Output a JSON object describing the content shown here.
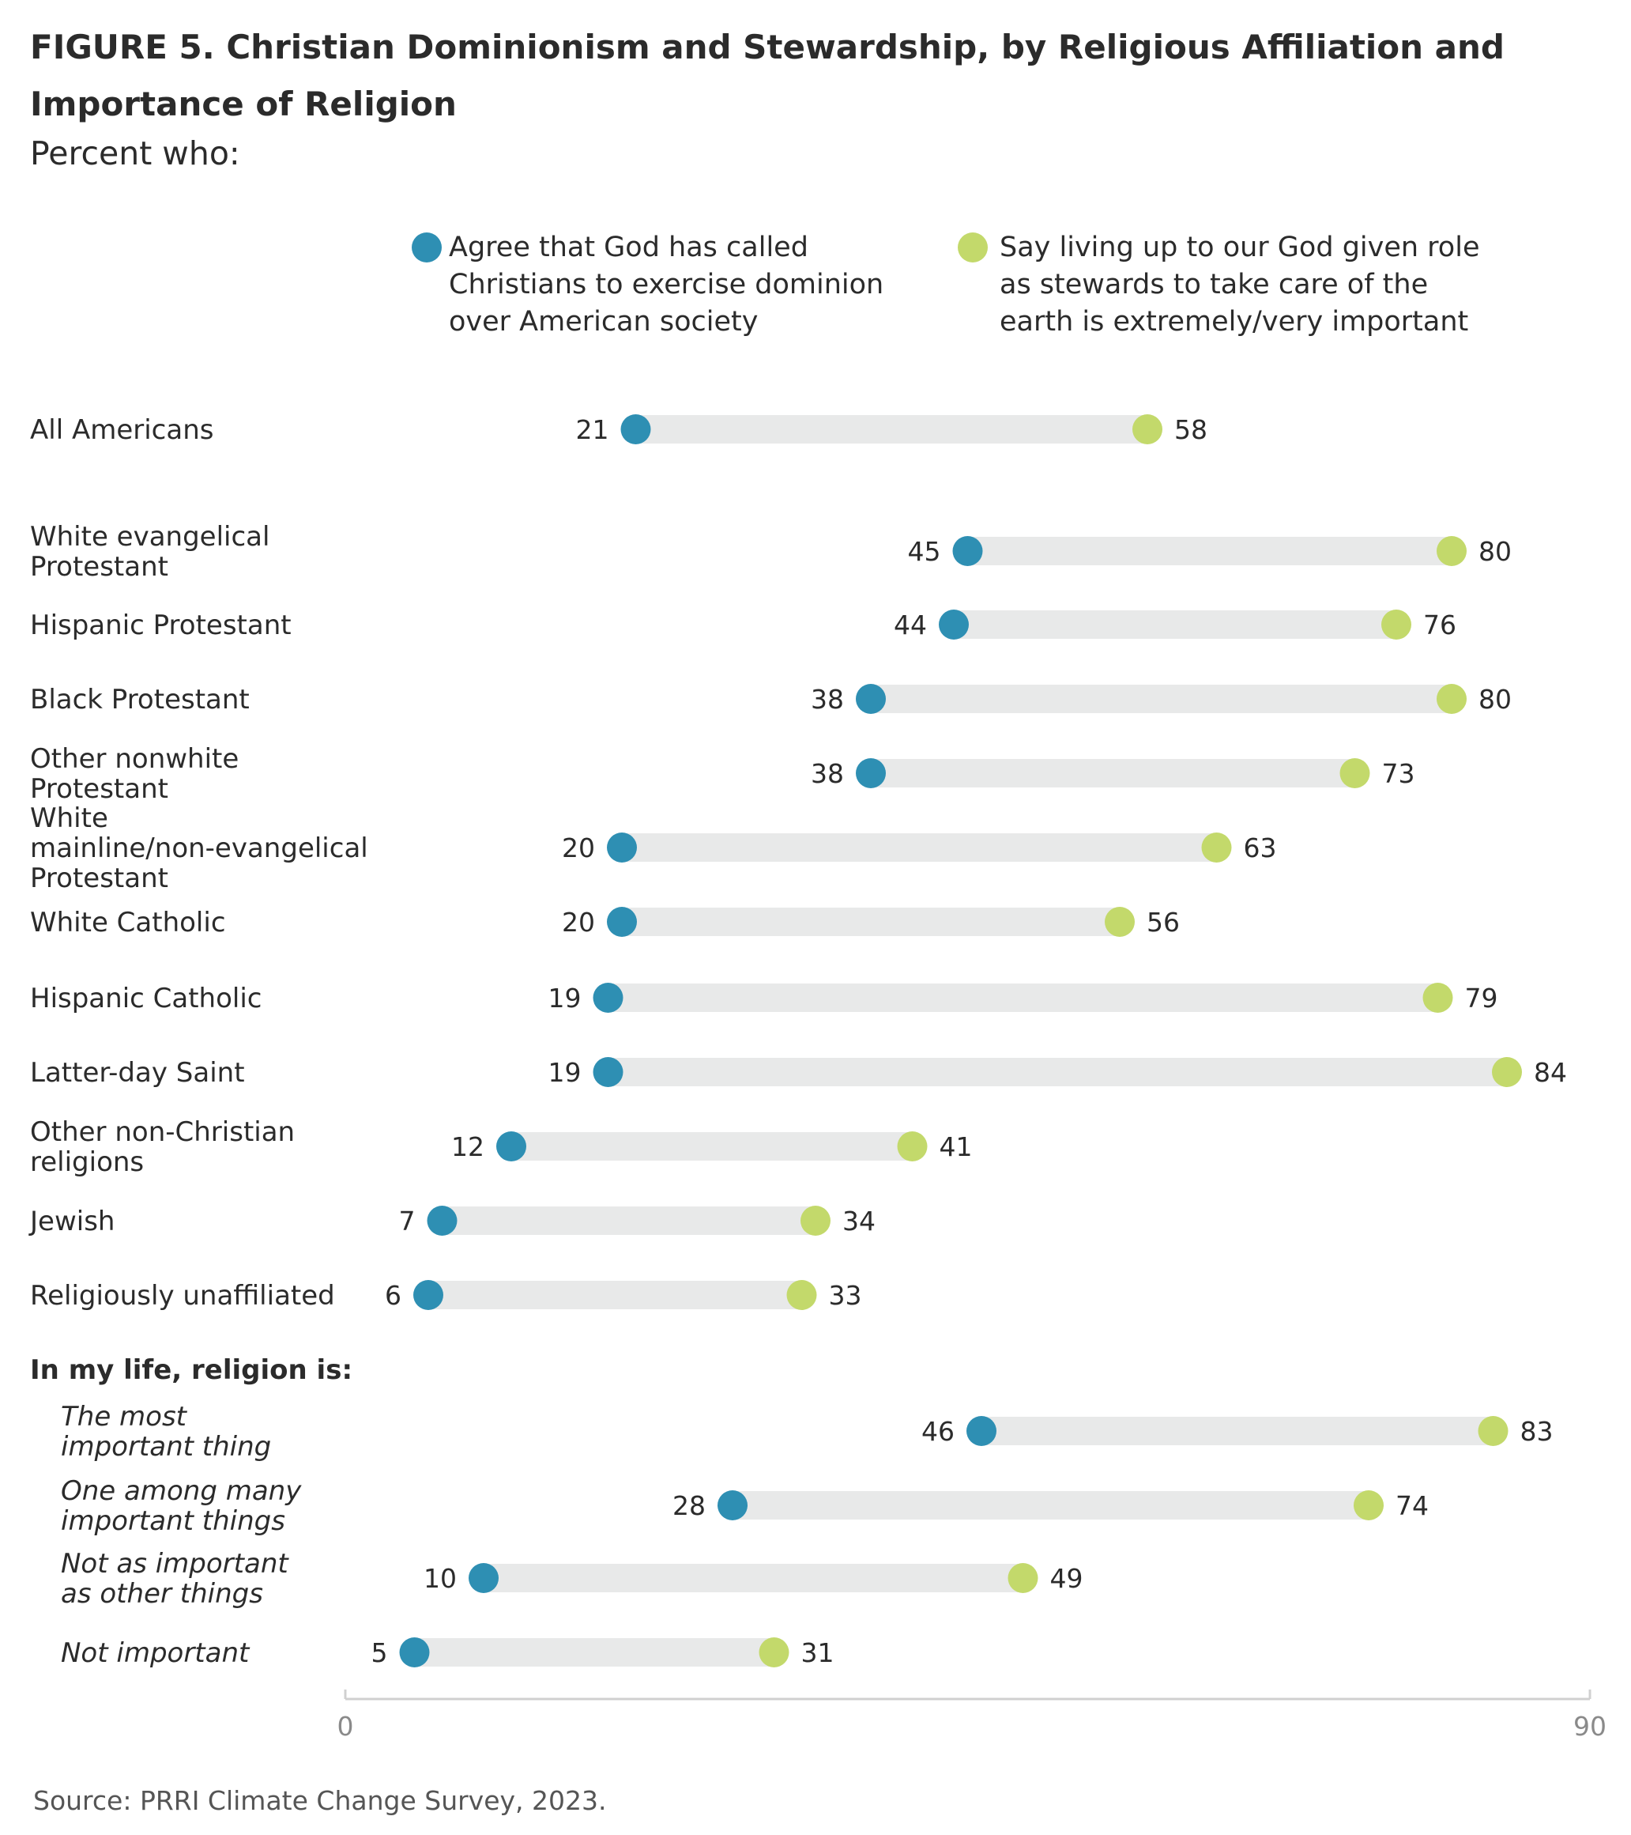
{
  "title": "FIGURE 5. Christian Dominionism and Stewardship, by Religious Affiliation and Importance of Religion",
  "subtitle": "Percent who:",
  "source": "Source: PRRI Climate Change Survey, 2023.",
  "colors": {
    "dominion": "#2e8fb3",
    "stewardship": "#c3d96b",
    "track": "#e8e9e9",
    "axis": "#d0d0d0"
  },
  "chart_data": {
    "type": "dumbbell",
    "xlim": [
      0,
      90
    ],
    "x_ticks": [
      "0",
      "90"
    ],
    "series": [
      {
        "name": "Agree that God has called Christians to exercise dominion over American society",
        "color": "#2e8fb3"
      },
      {
        "name": "Say living up to our God given role as stewards to take care of the earth is extremely/very important",
        "color": "#c3d96b"
      }
    ],
    "section_header": "In my life, religion is:",
    "rows": [
      {
        "label": "All Americans",
        "dominion": 21,
        "stewardship": 58,
        "style": "normal"
      },
      {
        "label": "White evangelical Protestant",
        "dominion": 45,
        "stewardship": 80,
        "style": "normal"
      },
      {
        "label": "Hispanic Protestant",
        "dominion": 44,
        "stewardship": 76,
        "style": "normal"
      },
      {
        "label": "Black Protestant",
        "dominion": 38,
        "stewardship": 80,
        "style": "normal"
      },
      {
        "label": "Other nonwhite Protestant",
        "dominion": 38,
        "stewardship": 73,
        "style": "normal"
      },
      {
        "label": "White mainline/non-evangelical Protestant",
        "dominion": 20,
        "stewardship": 63,
        "style": "normal"
      },
      {
        "label": "White Catholic",
        "dominion": 20,
        "stewardship": 56,
        "style": "normal"
      },
      {
        "label": "Hispanic Catholic",
        "dominion": 19,
        "stewardship": 79,
        "style": "normal"
      },
      {
        "label": "Latter-day Saint",
        "dominion": 19,
        "stewardship": 84,
        "style": "normal"
      },
      {
        "label": "Other non-Christian religions",
        "dominion": 12,
        "stewardship": 41,
        "style": "normal"
      },
      {
        "label": "Jewish",
        "dominion": 7,
        "stewardship": 34,
        "style": "normal"
      },
      {
        "label": "Religiously unaffiliated",
        "dominion": 6,
        "stewardship": 33,
        "style": "normal"
      },
      {
        "label": "The most important thing",
        "dominion": 46,
        "stewardship": 83,
        "style": "italic"
      },
      {
        "label": "One among many important things",
        "dominion": 28,
        "stewardship": 74,
        "style": "italic"
      },
      {
        "label": "Not as important as other things",
        "dominion": 10,
        "stewardship": 49,
        "style": "italic"
      },
      {
        "label": "Not important",
        "dominion": 5,
        "stewardship": 31,
        "style": "italic"
      }
    ]
  }
}
